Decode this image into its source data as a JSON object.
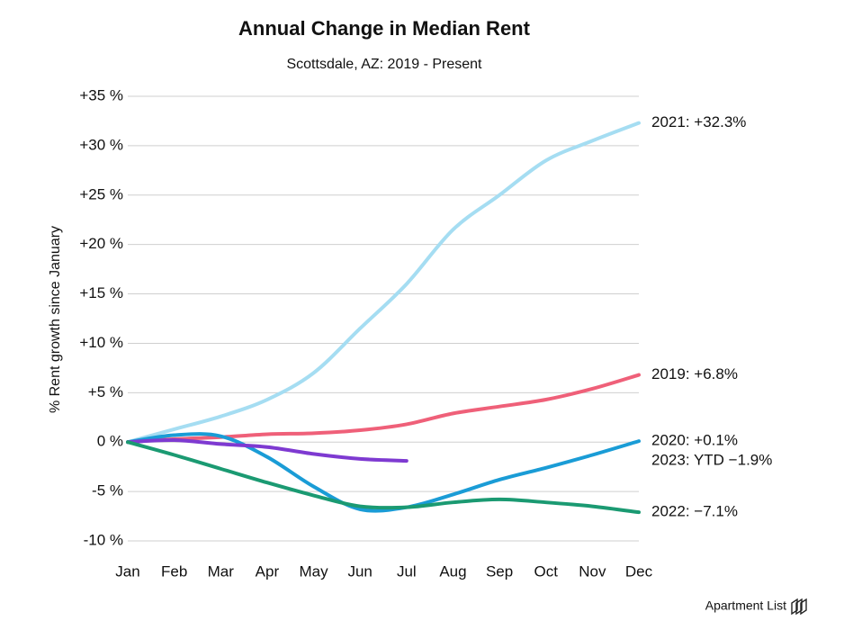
{
  "chart_data": {
    "type": "line",
    "title": "Annual Change in Median Rent",
    "subtitle": "Scottsdale, AZ: 2019 - Present",
    "y_label": "% Rent growth since January",
    "categories": [
      "Jan",
      "Feb",
      "Mar",
      "Apr",
      "May",
      "Jun",
      "Jul",
      "Aug",
      "Sep",
      "Oct",
      "Nov",
      "Dec"
    ],
    "series": [
      {
        "name": "2021: +32.3%",
        "color": "#a5ddf2",
        "values": [
          0,
          1.3,
          2.6,
          4.3,
          7,
          11.5,
          16,
          21.5,
          25,
          28.5,
          30.5,
          32.3
        ]
      },
      {
        "name": "2019: +6.8%",
        "color": "#ef6079",
        "values": [
          0,
          0.3,
          0.5,
          0.8,
          0.9,
          1.2,
          1.8,
          2.9,
          3.6,
          4.3,
          5.4,
          6.8
        ]
      },
      {
        "name": "2020: +0.1%",
        "color": "#1a9cd6",
        "values": [
          0,
          0.7,
          0.6,
          -1.5,
          -4.5,
          -6.8,
          -6.6,
          -5.3,
          -3.8,
          -2.6,
          -1.3,
          0.1
        ]
      },
      {
        "name": "2023: YTD −1.9%",
        "color": "#7e3ad1",
        "values": [
          0,
          0.2,
          -0.2,
          -0.5,
          -1.2,
          -1.7,
          -1.9,
          null,
          null,
          null,
          null,
          null
        ]
      },
      {
        "name": "2022: −7.1%",
        "color": "#1b9a72",
        "values": [
          0,
          -1.3,
          -2.7,
          -4.1,
          -5.4,
          -6.5,
          -6.6,
          -6.1,
          -5.8,
          -6.1,
          -6.5,
          -7.1
        ]
      }
    ],
    "ylim": [
      -10,
      35
    ],
    "yticks": [
      {
        "value": -10,
        "label": "-10 %"
      },
      {
        "value": -5,
        "label": "-5 %"
      },
      {
        "value": 0,
        "label": "0 %"
      },
      {
        "value": 5,
        "label": "+5 %"
      },
      {
        "value": 10,
        "label": "+10 %"
      },
      {
        "value": 15,
        "label": "+15 %"
      },
      {
        "value": 20,
        "label": "+20 %"
      },
      {
        "value": 25,
        "label": "+25 %"
      },
      {
        "value": 30,
        "label": "+30 %"
      },
      {
        "value": 35,
        "label": "+35 %"
      }
    ],
    "grid": true,
    "brand": "Apartment List"
  }
}
